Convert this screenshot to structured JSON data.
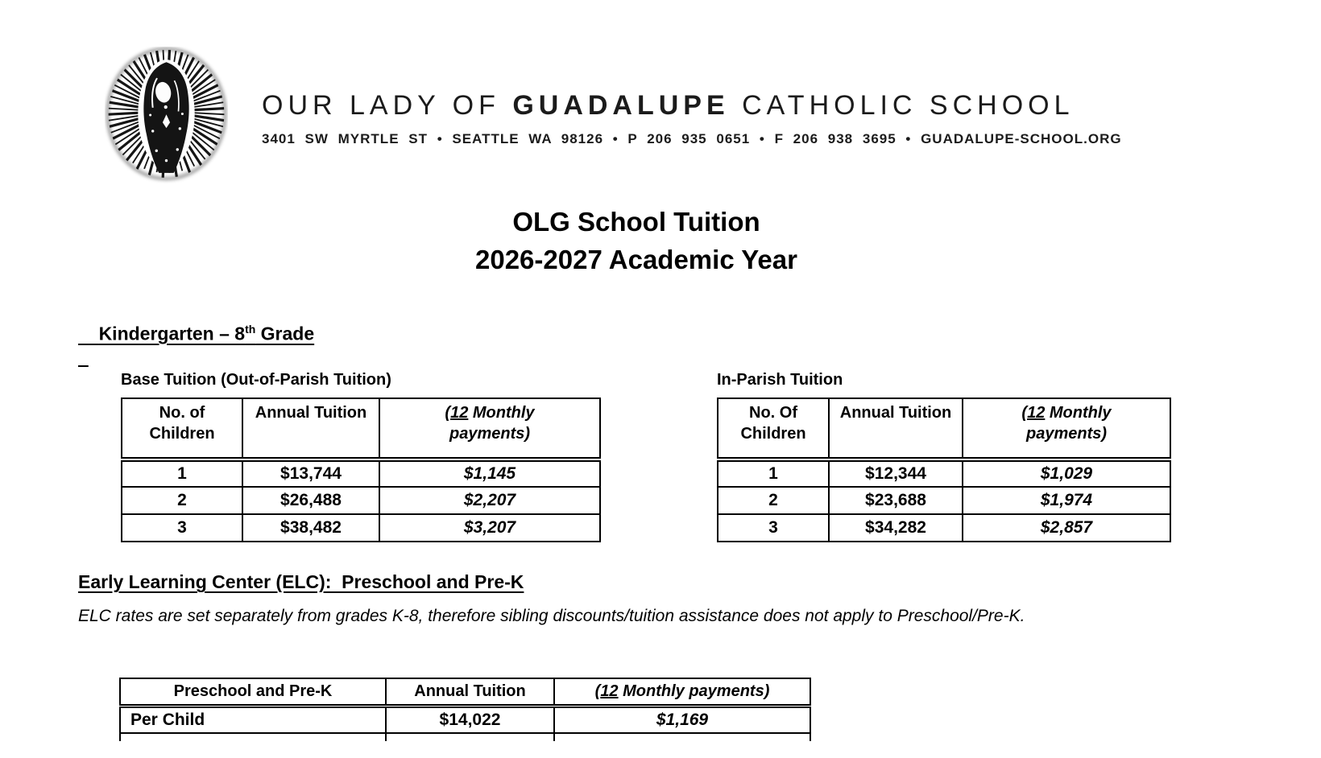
{
  "colors": {
    "ink": "#000000",
    "background": "#ffffff"
  },
  "header": {
    "logo": "our-lady-of-guadalupe-circular-seal",
    "school_name_part1": "OUR LADY OF ",
    "school_name_part2": "GUADALUPE",
    "school_name_part3": " CATHOLIC SCHOOL",
    "address_line": "3401 SW MYRTLE ST • SEATTLE WA 98126 • P 206 935 0651 • F 206 938 3695 • GUADALUPE-SCHOOL.ORG"
  },
  "title": {
    "line1": "OLG School Tuition",
    "line2": "2026-2027 Academic Year"
  },
  "k8_section": {
    "heading_main": "Kindergarten – 8",
    "heading_superscript": "th",
    "heading_tail": " Grade"
  },
  "elc_section": {
    "heading": "Early Learning Center (ELC):  Preschool and Pre-K",
    "note": "ELC rates are set separately from grades K-8, therefore sibling discounts/tuition assistance does not apply to Preschool/Pre-K."
  },
  "tables": {
    "base": {
      "caption": "Base Tuition (Out-of-Parish Tuition)",
      "col1_header": "No. of Children",
      "col2_header": "Annual Tuition",
      "col3_header": {
        "open": "(",
        "underlined": "12",
        "rest": " Monthly payments)"
      },
      "rows": [
        [
          "1",
          "$13,744",
          "$1,145"
        ],
        [
          "2",
          "$26,488",
          "$2,207"
        ],
        [
          "3",
          "$38,482",
          "$3,207"
        ]
      ]
    },
    "in_parish": {
      "caption": "In-Parish Tuition",
      "col1_header": "No. Of Children",
      "col2_header": "Annual Tuition",
      "col3_header": {
        "open": "(",
        "underlined": "12",
        "rest": " Monthly payments)"
      },
      "rows": [
        [
          "1",
          "$12,344",
          "$1,029"
        ],
        [
          "2",
          "$23,688",
          "$1,974"
        ],
        [
          "3",
          "$34,282",
          "$2,857"
        ]
      ]
    },
    "elc": {
      "col1_header": "Preschool and Pre-K",
      "col2_header": "Annual Tuition",
      "col3_header": {
        "open": "(",
        "underlined": "12",
        "rest": " Monthly payments)"
      },
      "rows": [
        [
          "Per Child",
          "$14,022",
          "$1,169"
        ]
      ]
    }
  }
}
